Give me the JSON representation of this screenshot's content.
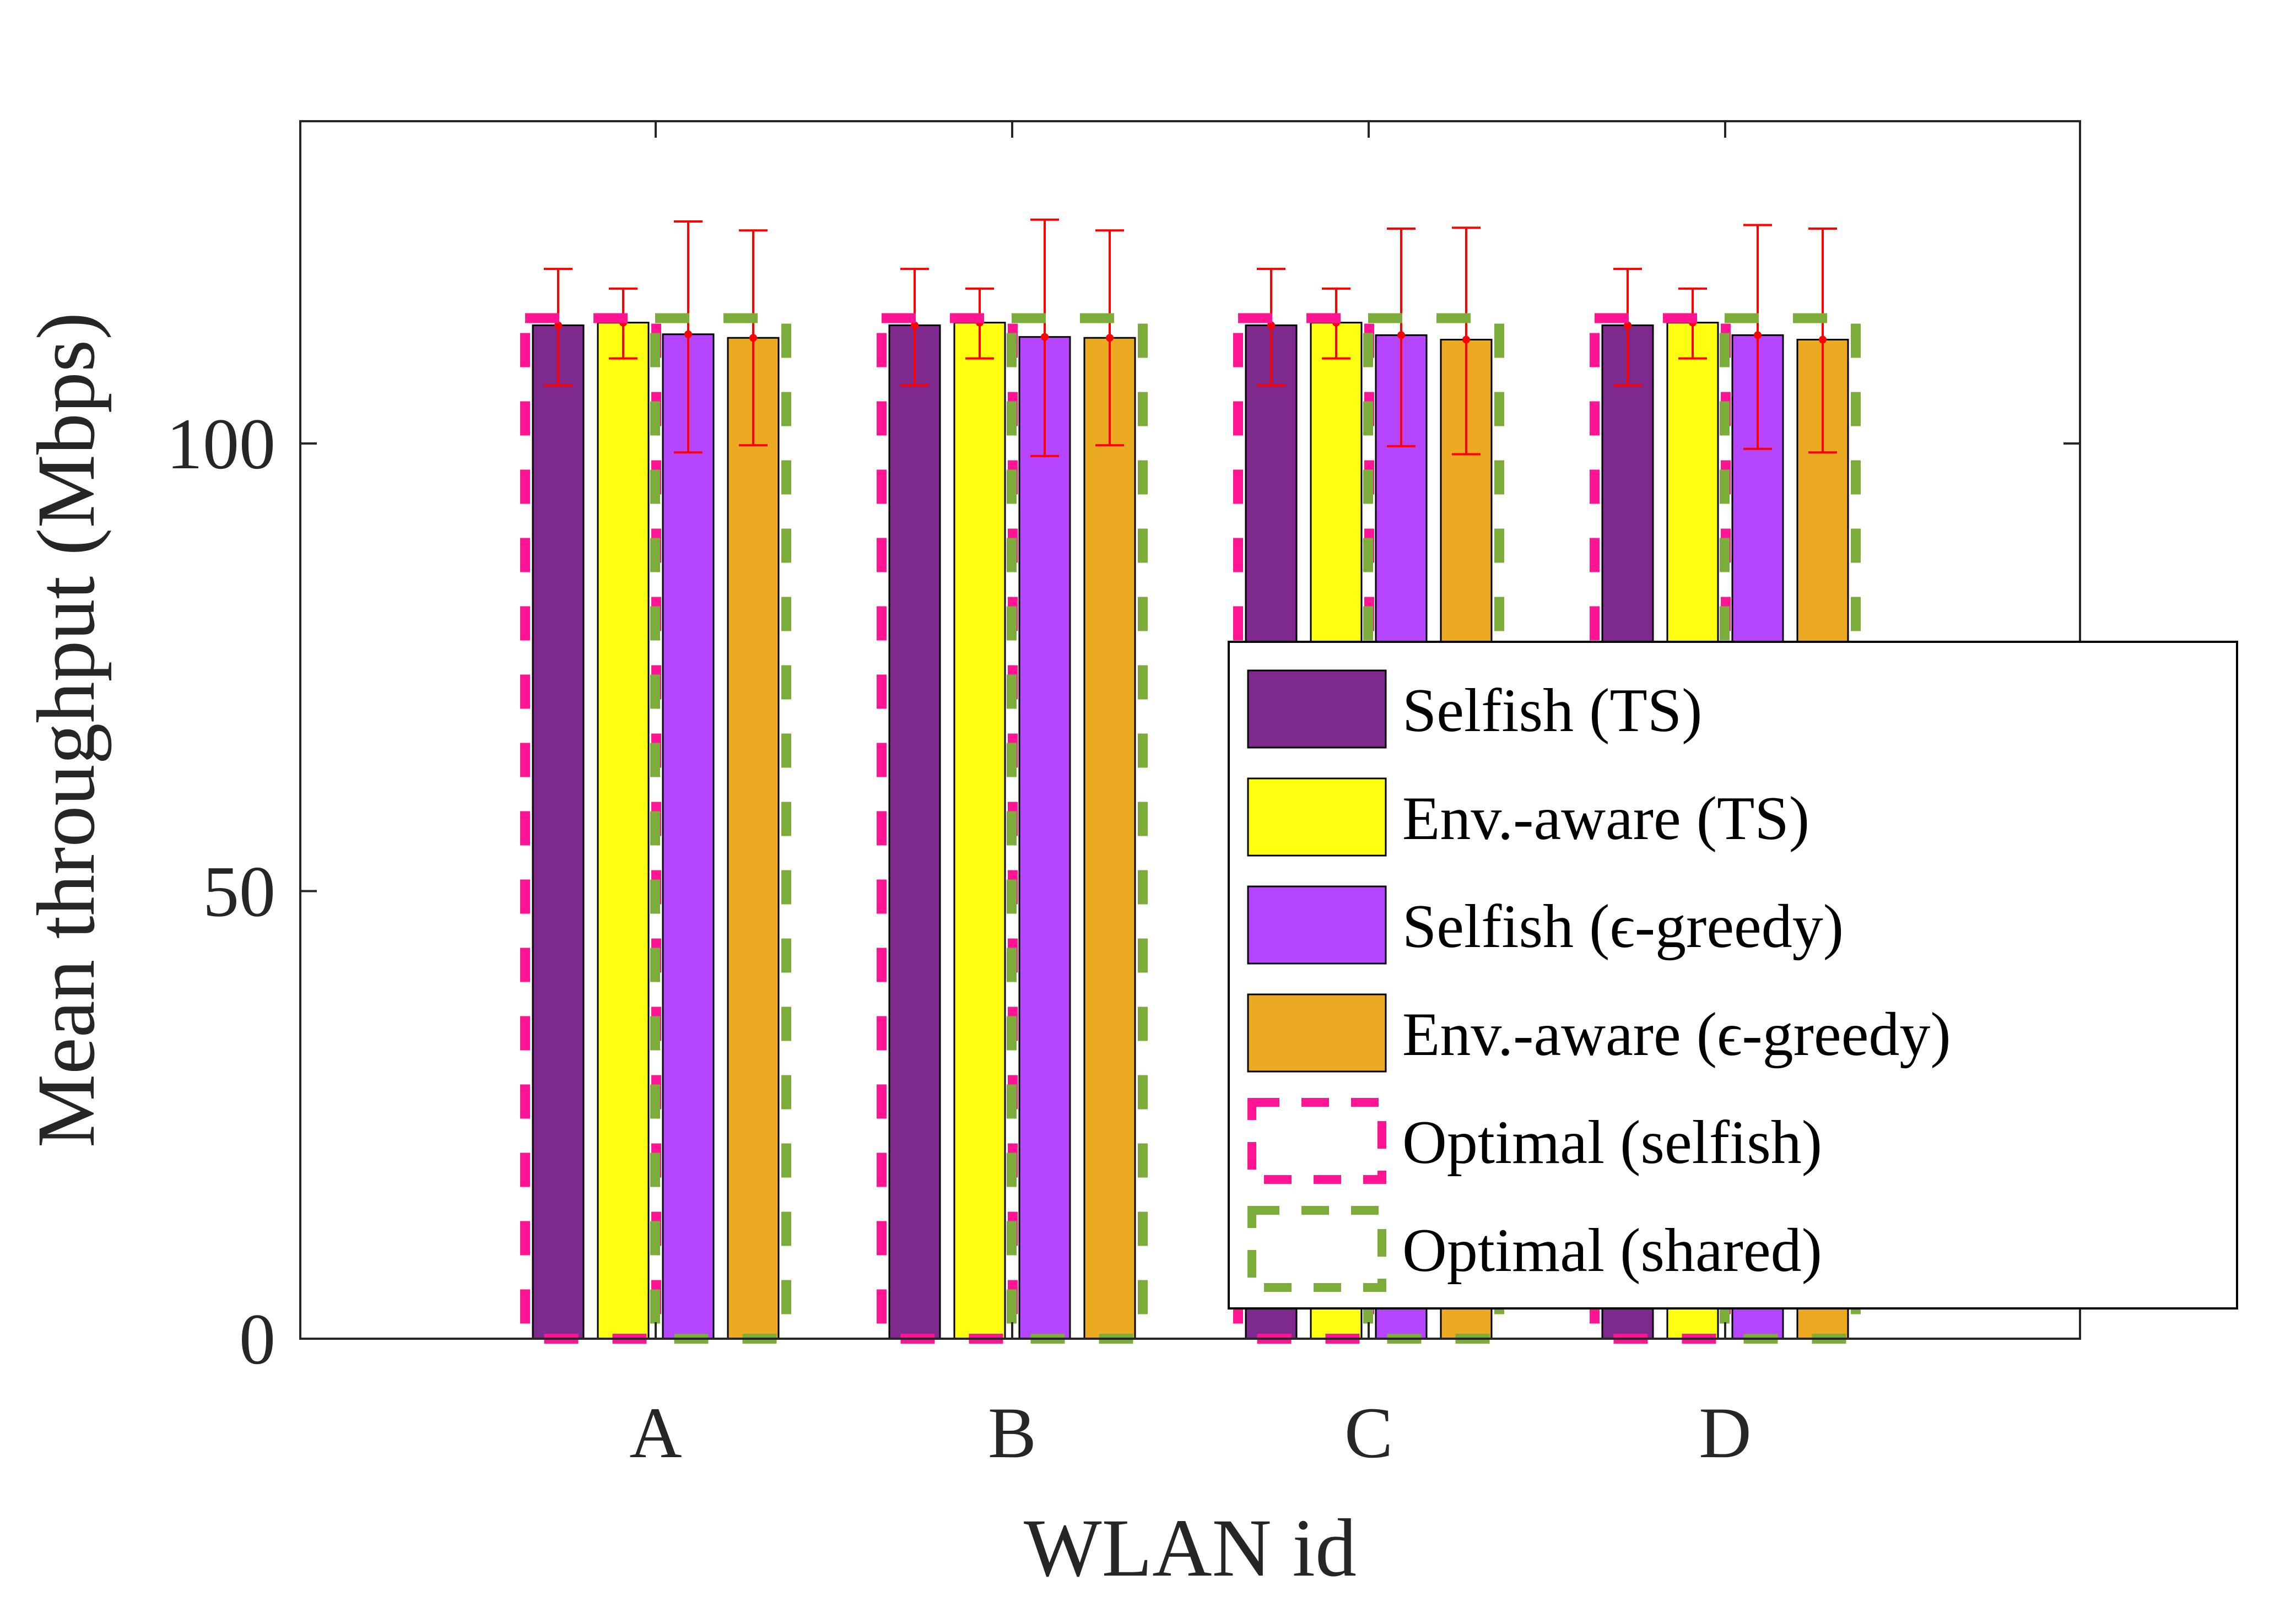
{
  "chart_data": {
    "type": "bar",
    "xlabel": "WLAN id",
    "ylabel": "Mean throughput (Mbps)",
    "categories": [
      "A",
      "B",
      "C",
      "D"
    ],
    "ylim": [
      0,
      136
    ],
    "yticks": [
      0,
      50,
      100
    ],
    "grid": false,
    "legend_position": "bottom-right",
    "series": [
      {
        "name": "Selfish (TS)",
        "color": "#7e2a8d",
        "style": "filled",
        "values": [
          113.2,
          113.2,
          113.2,
          113.2
        ],
        "err_low": [
          106.5,
          106.5,
          106.5,
          106.5
        ],
        "err_high": [
          119.5,
          119.5,
          119.5,
          119.5
        ]
      },
      {
        "name": "Env.-aware (TS)",
        "color": "#ffff11",
        "style": "filled",
        "values": [
          113.5,
          113.5,
          113.5,
          113.5
        ],
        "err_low": [
          109.5,
          109.5,
          109.5,
          109.5
        ],
        "err_high": [
          117.3,
          117.3,
          117.3,
          117.3
        ]
      },
      {
        "name": "Selfish (ϵ-greedy)",
        "color": "#b545ff",
        "style": "filled",
        "values": [
          112.2,
          111.9,
          112.1,
          112.1
        ],
        "err_low": [
          99.0,
          98.6,
          99.7,
          99.4
        ],
        "err_high": [
          124.8,
          125.0,
          124.0,
          124.4
        ],
        "offset": 0
      },
      {
        "name": "Env.-aware (ϵ-greedy)",
        "color": "#ebaa22",
        "style": "filled",
        "values": [
          111.8,
          111.8,
          111.6,
          111.6
        ],
        "err_low": [
          99.8,
          99.8,
          98.8,
          99.0
        ],
        "err_high": [
          123.8,
          123.8,
          124.1,
          124.0
        ]
      },
      {
        "name": "Optimal (selfish)",
        "color": "#ff1493",
        "style": "dashed",
        "values": [
          114.0,
          114.0,
          114.0,
          114.0
        ]
      },
      {
        "name": "Optimal (shared)",
        "color": "#7cad3a",
        "style": "dashed",
        "values": [
          114.0,
          114.0,
          114.0,
          114.0
        ]
      }
    ]
  }
}
